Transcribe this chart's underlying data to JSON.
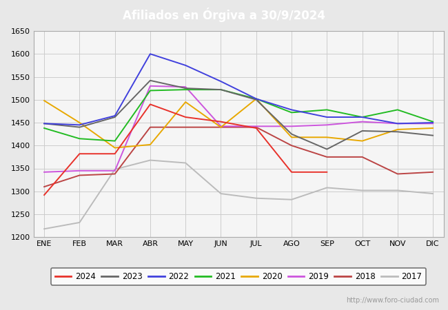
{
  "title": "Afiliados en Órgiva a 30/9/2024",
  "title_bg_color": "#5b9bd5",
  "title_text_color": "white",
  "ylim": [
    1200,
    1650
  ],
  "yticks": [
    1200,
    1250,
    1300,
    1350,
    1400,
    1450,
    1500,
    1550,
    1600,
    1650
  ],
  "months": [
    "ENE",
    "FEB",
    "MAR",
    "ABR",
    "MAY",
    "JUN",
    "JUL",
    "AGO",
    "SEP",
    "OCT",
    "NOV",
    "DIC"
  ],
  "series": {
    "2024": {
      "color": "#e8312a",
      "data": [
        1292,
        1382,
        1382,
        1490,
        1462,
        1452,
        1438,
        1342,
        1342,
        null,
        null,
        null
      ]
    },
    "2023": {
      "color": "#666666",
      "data": [
        1448,
        1440,
        1462,
        1542,
        1525,
        1522,
        1500,
        1425,
        1392,
        1432,
        1430,
        1422
      ]
    },
    "2022": {
      "color": "#4040dd",
      "data": [
        1448,
        1445,
        1465,
        1600,
        1575,
        1540,
        1502,
        1478,
        1462,
        1462,
        1448,
        1450
      ]
    },
    "2021": {
      "color": "#22bb22",
      "data": [
        1438,
        1415,
        1410,
        1520,
        1522,
        1522,
        1502,
        1472,
        1478,
        1462,
        1478,
        1452
      ]
    },
    "2020": {
      "color": "#e8a800",
      "data": [
        1498,
        1450,
        1395,
        1402,
        1495,
        1440,
        1502,
        1418,
        1418,
        1410,
        1435,
        1438
      ]
    },
    "2019": {
      "color": "#cc55dd",
      "data": [
        1342,
        1345,
        1345,
        1530,
        1528,
        1442,
        1442,
        1442,
        1445,
        1452,
        1448,
        1448
      ]
    },
    "2018": {
      "color": "#bb4444",
      "data": [
        1310,
        1335,
        1338,
        1440,
        1440,
        1440,
        1440,
        1400,
        1375,
        1375,
        1338,
        1342
      ]
    },
    "2017": {
      "color": "#bbbbbb",
      "data": [
        1218,
        1232,
        1348,
        1368,
        1362,
        1295,
        1285,
        1282,
        1308,
        1302,
        1302,
        1295
      ]
    }
  },
  "watermark": "http://www.foro-ciudad.com",
  "fig_bg": "#e8e8e8",
  "plot_bg": "#f5f5f5",
  "grid_color": "#cccccc",
  "legend_border_color": "#555555"
}
